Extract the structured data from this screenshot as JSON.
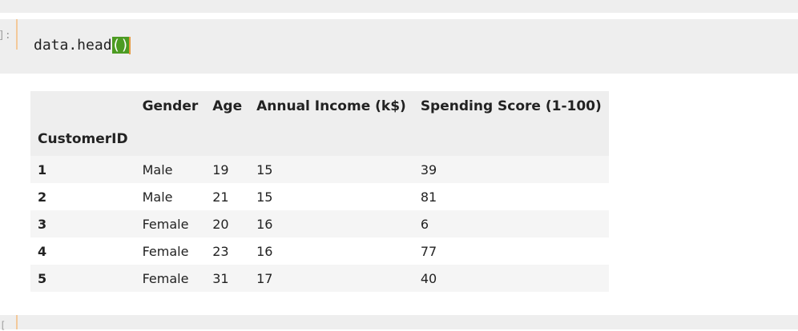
{
  "cell": {
    "prompt": "]:",
    "code_text": "data.head",
    "code_parens": "()"
  },
  "table": {
    "index_name": "CustomerID",
    "columns": [
      "Gender",
      "Age",
      "Annual Income (k$)",
      "Spending Score (1-100)"
    ],
    "rows": [
      {
        "id": "1",
        "values": [
          "Male",
          "19",
          "15",
          "39"
        ]
      },
      {
        "id": "2",
        "values": [
          "Male",
          "21",
          "15",
          "81"
        ]
      },
      {
        "id": "3",
        "values": [
          "Female",
          "20",
          "16",
          "6"
        ]
      },
      {
        "id": "4",
        "values": [
          "Female",
          "23",
          "16",
          "77"
        ]
      },
      {
        "id": "5",
        "values": [
          "Female",
          "31",
          "17",
          "40"
        ]
      }
    ]
  },
  "next_cell": {
    "prompt": "["
  },
  "colors": {
    "cell_background": "#eeeeee",
    "paren_highlight": "#4c9b22",
    "cursor": "#e69a43",
    "cell_border": "#f3c99a"
  }
}
